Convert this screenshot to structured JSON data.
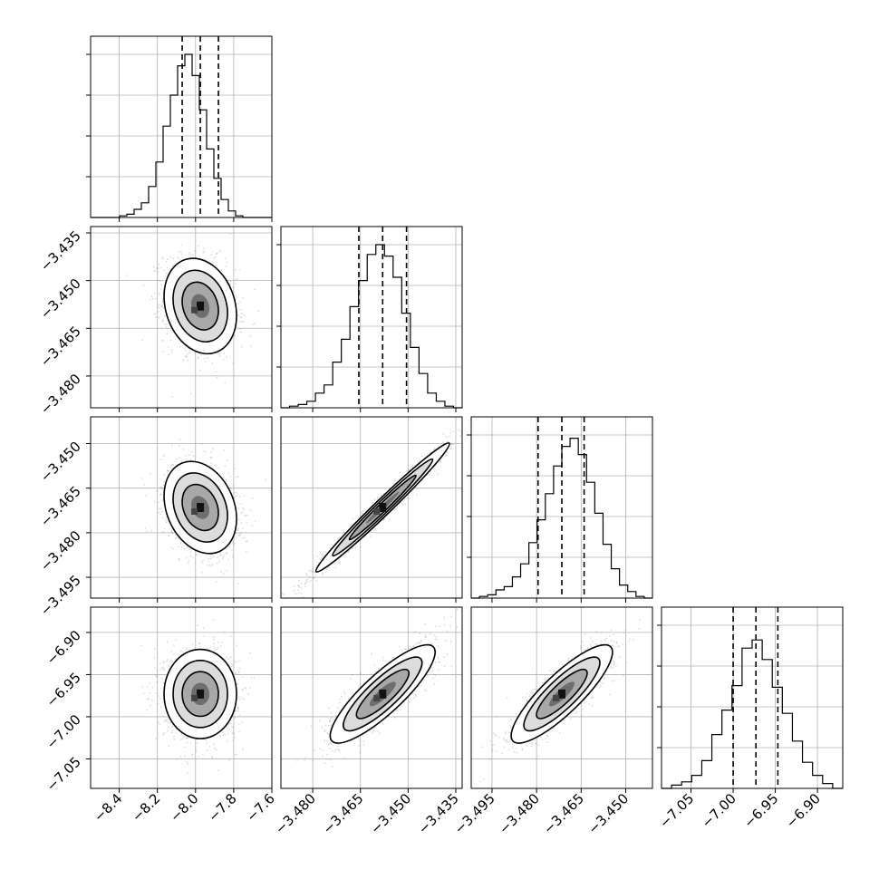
{
  "chart_data": {
    "type": "corner",
    "grid": true,
    "panel_order": [
      "p0",
      "p1",
      "p2",
      "p3"
    ],
    "params": {
      "p0": {
        "range": [
          -8.55,
          -7.6
        ],
        "ticks": [
          "-8.4",
          "-8.2",
          "-8.0",
          "-7.8",
          "-7.6"
        ],
        "tick_values": [
          -8.4,
          -8.2,
          -8.0,
          -7.8,
          -7.6
        ],
        "quantiles": [
          -8.07,
          -7.975,
          -7.88
        ],
        "hist_max": 1.0,
        "hist": [
          0.0,
          0.0,
          0.0,
          0.0,
          0.01,
          0.02,
          0.05,
          0.09,
          0.19,
          0.34,
          0.56,
          0.75,
          0.93,
          1.0,
          0.87,
          0.66,
          0.42,
          0.24,
          0.11,
          0.04,
          0.01,
          0.0,
          0.0,
          0.0,
          0.0
        ]
      },
      "p1": {
        "range": [
          -3.49,
          -3.433
        ],
        "ticks": [
          "-3.480",
          "-3.465",
          "-3.450",
          "-3.435"
        ],
        "tick_values": [
          -3.48,
          -3.465,
          -3.45,
          -3.435
        ],
        "left_ticks": [
          "-3.435",
          "-3.450",
          "-3.465",
          "-3.480"
        ],
        "quantiles": [
          -3.4655,
          -3.458,
          -3.4505
        ],
        "hist_max": 1.0,
        "hist": [
          0.0,
          0.01,
          0.02,
          0.04,
          0.09,
          0.14,
          0.28,
          0.42,
          0.62,
          0.78,
          0.94,
          1.0,
          0.93,
          0.8,
          0.58,
          0.37,
          0.21,
          0.09,
          0.04,
          0.01,
          0.0
        ]
      },
      "p2": {
        "range": [
          -3.502,
          -3.441
        ],
        "ticks": [
          "-3.495",
          "-3.480",
          "-3.465",
          "-3.450"
        ],
        "tick_values": [
          -3.495,
          -3.48,
          -3.465,
          -3.45
        ],
        "left_ticks": [
          "-3.450",
          "-3.465",
          "-3.480",
          "-3.495"
        ],
        "quantiles": [
          -3.4795,
          -3.4715,
          -3.464
        ],
        "hist_max": 1.0,
        "hist": [
          0.0,
          0.01,
          0.02,
          0.05,
          0.07,
          0.13,
          0.21,
          0.34,
          0.48,
          0.64,
          0.81,
          0.93,
          0.98,
          0.88,
          0.71,
          0.52,
          0.33,
          0.18,
          0.08,
          0.04,
          0.01,
          0.0
        ]
      },
      "p3": {
        "range": [
          -7.085,
          -6.87
        ],
        "ticks": [
          "-7.05",
          "-7.00",
          "-6.95",
          "-6.90"
        ],
        "tick_values": [
          -7.05,
          -7.0,
          -6.95,
          -6.9
        ],
        "left_ticks": [
          "-6.90",
          "-6.95",
          "-7.00",
          "-7.05"
        ],
        "quantiles": [
          -7.0,
          -6.973,
          -6.947
        ],
        "hist_max": 1.0,
        "hist": [
          0.0,
          0.02,
          0.04,
          0.08,
          0.17,
          0.33,
          0.48,
          0.63,
          0.86,
          0.91,
          0.79,
          0.62,
          0.46,
          0.29,
          0.16,
          0.08,
          0.03,
          0.0
        ]
      }
    },
    "pairs": [
      {
        "x": "p0",
        "y": "p1",
        "rho": -0.2,
        "spread": 1.0
      },
      {
        "x": "p0",
        "y": "p2",
        "rho": -0.25,
        "spread": 1.0
      },
      {
        "x": "p1",
        "y": "p2",
        "rho": 0.985,
        "spread": 1.4
      },
      {
        "x": "p0",
        "y": "p3",
        "rho": 0.0,
        "spread": 1.0
      },
      {
        "x": "p1",
        "y": "p3",
        "rho": 0.85,
        "spread": 1.1
      },
      {
        "x": "p2",
        "y": "p3",
        "rho": 0.85,
        "spread": 1.1
      }
    ],
    "contour_levels_sigma": [
      0.5,
      1.0,
      1.5,
      2.0
    ]
  }
}
